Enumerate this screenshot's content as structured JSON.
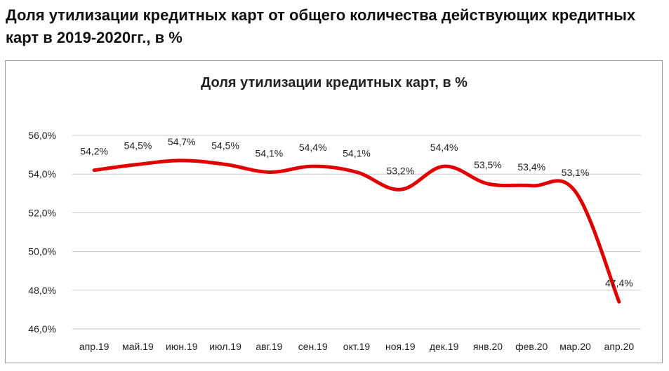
{
  "page": {
    "title": "Доля утилизации кредитных карт от общего количества действующих кредитных карт в 2019-2020гг., в %"
  },
  "chart_data": {
    "type": "line",
    "title": "Доля  утилизации кредитных карт, в %",
    "xlabel": "",
    "ylabel": "",
    "categories": [
      "апр.19",
      "май.19",
      "июн.19",
      "июл.19",
      "авг.19",
      "сен.19",
      "окт.19",
      "ноя.19",
      "дек.19",
      "янв.20",
      "фев.20",
      "мар.20",
      "апр.20"
    ],
    "series": [
      {
        "values": [
          54.2,
          54.5,
          54.7,
          54.5,
          54.1,
          54.4,
          54.1,
          53.2,
          54.4,
          53.5,
          53.4,
          53.1,
          47.4
        ],
        "labels": [
          "54,2%",
          "54,5%",
          "54,7%",
          "54,5%",
          "54,1%",
          "54,4%",
          "54,1%",
          "53,2%",
          "54,4%",
          "53,5%",
          "53,4%",
          "53,1%",
          "47,4%"
        ],
        "color": "#e00000"
      }
    ],
    "yticks": [
      "46,0%",
      "48,0%",
      "50,0%",
      "52,0%",
      "54,0%",
      "56,0%"
    ],
    "ylim": [
      46,
      56
    ],
    "grid": true,
    "legend": "none",
    "smooth": true
  }
}
